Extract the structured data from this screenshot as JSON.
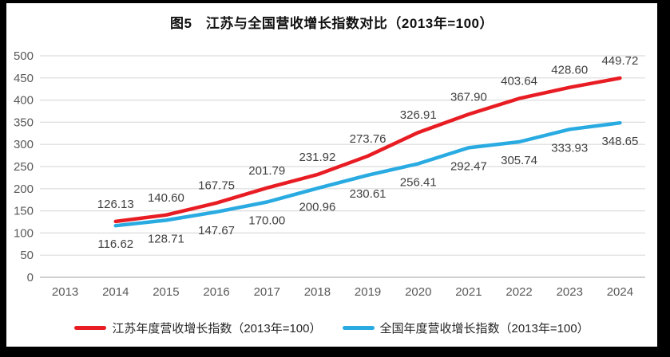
{
  "title": "图5　江苏与全国营收增长指数对比（2013年=100）",
  "chart_data": {
    "type": "line",
    "categories": [
      "2013",
      "2014",
      "2015",
      "2016",
      "2017",
      "2018",
      "2019",
      "2020",
      "2021",
      "2022",
      "2023",
      "2024"
    ],
    "series": [
      {
        "name": "江苏年度营收增长指数（2013年=100）",
        "color": "#e81c23",
        "label_position": "above",
        "values": [
          null,
          126.13,
          140.6,
          167.75,
          201.79,
          231.92,
          273.76,
          326.91,
          367.9,
          403.64,
          428.6,
          449.72
        ]
      },
      {
        "name": "全国年度营收增长指数（2013年=100）",
        "color": "#29abe2",
        "label_position": "below",
        "values": [
          null,
          116.62,
          128.71,
          147.67,
          170.0,
          200.96,
          230.61,
          256.41,
          292.47,
          305.74,
          333.93,
          348.65
        ]
      }
    ],
    "xlabel": "",
    "ylabel": "",
    "ylim": [
      0,
      500
    ],
    "ytick_step": 50,
    "grid": true,
    "legend_position": "bottom"
  },
  "colors": {
    "frame": "#000000",
    "canvas": "#ffffff",
    "gridline": "#dcdcdc",
    "axis_line": "#bfbfbf",
    "tick_text": "#595959",
    "data_label_text": "#3f3f3f"
  }
}
